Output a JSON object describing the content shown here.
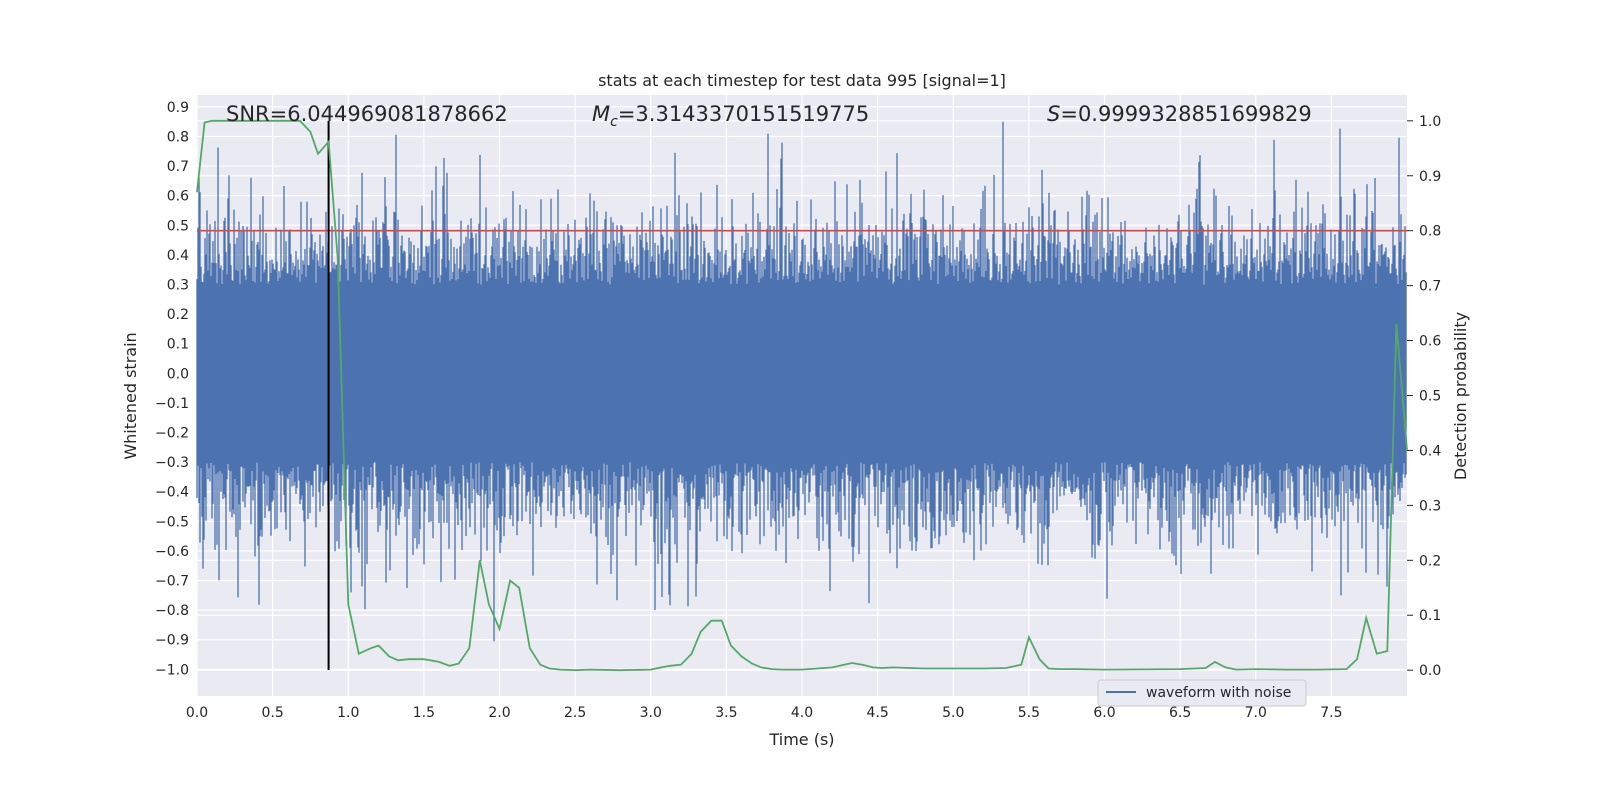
{
  "chart_data": {
    "type": "line",
    "title": "stats at each timestep for test data 995 [signal=1]",
    "xlabel": "Time (s)",
    "ylabel_left": "Whitened strain",
    "ylabel_right": "Detection probability",
    "xlim": [
      0.0,
      8.0
    ],
    "ylim_left": [
      -1.09,
      0.94
    ],
    "ylim_right": [
      -0.047,
      1.047
    ],
    "x_ticks": [
      "0.0",
      "0.5",
      "1.0",
      "1.5",
      "2.0",
      "2.5",
      "3.0",
      "3.5",
      "4.0",
      "4.5",
      "5.0",
      "5.5",
      "6.0",
      "6.5",
      "7.0",
      "7.5"
    ],
    "y_ticks_left": [
      "0.9",
      "0.8",
      "0.7",
      "0.6",
      "0.5",
      "0.4",
      "0.3",
      "0.2",
      "0.1",
      "0.0",
      "-0.1",
      "-0.2",
      "-0.3",
      "-0.4",
      "-0.5",
      "-0.6",
      "-0.7",
      "-0.8",
      "-0.9",
      "-1.0"
    ],
    "y_ticks_right": [
      "1.0",
      "0.9",
      "0.8",
      "0.7",
      "0.6",
      "0.5",
      "0.4",
      "0.3",
      "0.2",
      "0.1",
      "0.0"
    ],
    "grid": true,
    "legend_position": "bottom-right",
    "annotations": {
      "snr": "SNR=6.044969081878662",
      "mc_symbol": "M",
      "mc_sub": "c",
      "mc_value": "=3.3143370151519775",
      "s_symbol": "S",
      "s_value": "=0.9999328851699829"
    },
    "threshold_right": 0.8,
    "marker_time": 0.87,
    "series": [
      {
        "name": "waveform with noise",
        "axis": "left",
        "duration_s": 8.0,
        "core_amplitude": 0.3,
        "max_amplitude": 0.85,
        "min_amplitude": -0.97
      },
      {
        "axis": "right",
        "x": [
          0.0,
          0.05,
          0.1,
          0.2,
          0.3,
          0.4,
          0.5,
          0.6,
          0.68,
          0.75,
          0.8,
          0.87,
          0.93,
          1.0,
          1.07,
          1.15,
          1.2,
          1.27,
          1.33,
          1.4,
          1.5,
          1.6,
          1.67,
          1.73,
          1.8,
          1.87,
          1.93,
          2.0,
          2.07,
          2.13,
          2.2,
          2.27,
          2.33,
          2.4,
          2.5,
          2.6,
          2.8,
          3.0,
          3.07,
          3.13,
          3.2,
          3.27,
          3.33,
          3.4,
          3.47,
          3.53,
          3.6,
          3.67,
          3.73,
          3.8,
          3.87,
          4.0,
          4.2,
          4.33,
          4.4,
          4.47,
          4.53,
          4.6,
          4.8,
          5.0,
          5.2,
          5.35,
          5.45,
          5.5,
          5.57,
          5.63,
          5.7,
          5.8,
          6.0,
          6.5,
          6.67,
          6.73,
          6.8,
          6.87,
          7.0,
          7.2,
          7.4,
          7.6,
          7.67,
          7.73,
          7.8,
          7.87,
          7.93,
          7.97,
          8.0
        ],
        "y": [
          0.87,
          0.997,
          1.0,
          1.0,
          1.0,
          1.0,
          1.0,
          1.0,
          1.0,
          0.98,
          0.94,
          0.962,
          0.75,
          0.12,
          0.03,
          0.04,
          0.045,
          0.025,
          0.018,
          0.02,
          0.02,
          0.015,
          0.008,
          0.012,
          0.04,
          0.2,
          0.12,
          0.075,
          0.163,
          0.15,
          0.04,
          0.01,
          0.003,
          0.001,
          0.0,
          0.001,
          0.0,
          0.001,
          0.005,
          0.008,
          0.01,
          0.03,
          0.07,
          0.09,
          0.09,
          0.045,
          0.025,
          0.012,
          0.005,
          0.002,
          0.001,
          0.001,
          0.005,
          0.013,
          0.01,
          0.005,
          0.004,
          0.005,
          0.003,
          0.003,
          0.003,
          0.004,
          0.01,
          0.06,
          0.02,
          0.003,
          0.002,
          0.002,
          0.001,
          0.002,
          0.004,
          0.015,
          0.005,
          0.001,
          0.002,
          0.001,
          0.001,
          0.002,
          0.02,
          0.095,
          0.03,
          0.035,
          0.63,
          0.5,
          0.4
        ]
      }
    ],
    "colors": {
      "waveform": "#4c72b0",
      "probability": "#55a868",
      "threshold": "#c44e52",
      "marker": "#000000",
      "plot_background": "#eaeaf2",
      "grid": "#ffffff"
    }
  }
}
